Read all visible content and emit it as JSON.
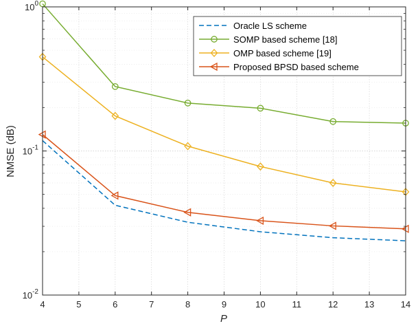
{
  "chart_data": {
    "type": "line",
    "xlabel": "P",
    "ylabel": "NMSE (dB)",
    "xlim": [
      4,
      14
    ],
    "ylim": [
      0.01,
      1
    ],
    "yscale": "log",
    "grid": true,
    "legend_position": "top-right",
    "x_ticks": [
      "4",
      "5",
      "6",
      "7",
      "8",
      "9",
      "10",
      "11",
      "12",
      "13",
      "14"
    ],
    "y_ticks": [
      {
        "base": "10",
        "exp": "-2",
        "value": 0.01
      },
      {
        "base": "10",
        "exp": "-1",
        "value": 0.1
      },
      {
        "base": "10",
        "exp": "0",
        "value": 1
      }
    ],
    "series": [
      {
        "name": "Oracle LS scheme",
        "color": "#0072BD",
        "style": "dashed",
        "marker": "none",
        "x": [
          4,
          6,
          8,
          10,
          12,
          14
        ],
        "y": [
          0.118,
          0.042,
          0.032,
          0.0275,
          0.025,
          0.0238
        ]
      },
      {
        "name": "SOMP based scheme [18]",
        "color": "#77AC30",
        "style": "solid",
        "marker": "circle",
        "x": [
          4,
          6,
          8,
          10,
          12,
          14
        ],
        "y": [
          1.05,
          0.28,
          0.215,
          0.198,
          0.16,
          0.156
        ]
      },
      {
        "name": "OMP based scheme [19]",
        "color": "#EDB120",
        "style": "solid",
        "marker": "diamond",
        "x": [
          4,
          6,
          8,
          10,
          12,
          14
        ],
        "y": [
          0.45,
          0.175,
          0.108,
          0.078,
          0.06,
          0.052
        ]
      },
      {
        "name": "Proposed BPSD based scheme",
        "color": "#D95319",
        "style": "solid",
        "marker": "triangle-left",
        "x": [
          4,
          6,
          8,
          10,
          12,
          14
        ],
        "y": [
          0.13,
          0.049,
          0.0375,
          0.0328,
          0.0302,
          0.0288
        ]
      }
    ]
  }
}
